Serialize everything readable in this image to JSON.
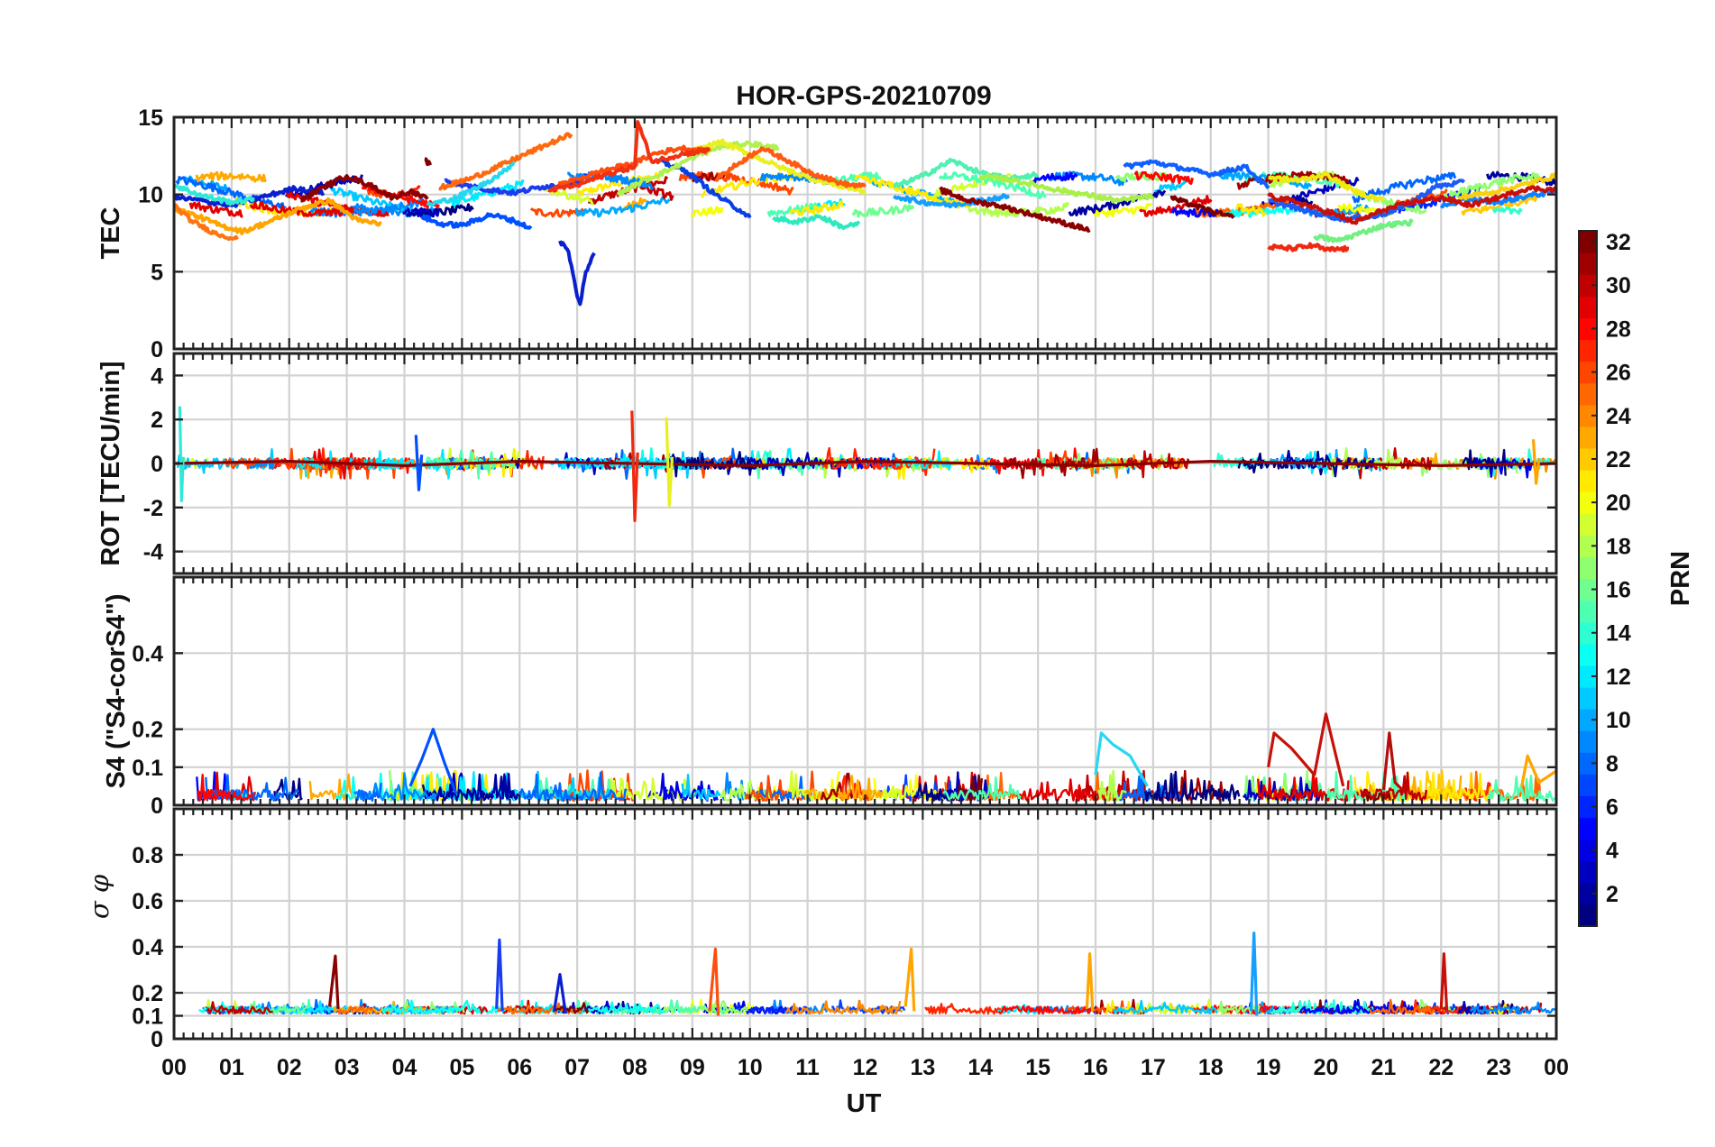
{
  "chart_data": [
    {
      "type": "line",
      "title": "HOR-GPS-20210709",
      "ylabel": "TEC",
      "ylim": [
        0,
        15
      ],
      "yticks": [
        "0",
        "5",
        "10",
        "15"
      ],
      "series": [
        {
          "prn": 2,
          "color": "#0a1fd0",
          "x": [
            0.0,
            0.5,
            1.0,
            1.6,
            2.1,
            2.6
          ],
          "y": [
            9.8,
            9.6,
            9.3,
            9.9,
            10.4,
            10.1
          ]
        },
        {
          "prn": 3,
          "color": "#0050ff",
          "x": [
            4.3,
            4.6,
            5.0,
            5.5,
            5.9,
            6.2
          ],
          "y": [
            8.6,
            8.1,
            8.0,
            8.7,
            8.3,
            7.8
          ]
        },
        {
          "prn": 1,
          "color": "#0a1fd0",
          "x": [
            6.7,
            6.85,
            7.0,
            7.05,
            7.15,
            7.3
          ],
          "y": [
            7.0,
            6.3,
            3.4,
            2.9,
            5.0,
            6.2
          ]
        },
        {
          "prn": 5,
          "color": "#1a3cf0",
          "x": [
            4.7,
            5.3,
            5.9,
            6.4,
            6.9,
            7.2
          ],
          "y": [
            10.9,
            10.4,
            10.1,
            10.5,
            10.7,
            11.2
          ]
        },
        {
          "prn": 6,
          "color": "#0a3fe6",
          "x": [
            8.4,
            8.9,
            9.4,
            9.9,
            10.0
          ],
          "y": [
            12.2,
            11.5,
            10.0,
            8.8,
            8.5
          ]
        },
        {
          "prn": 4,
          "color": "#1060ff",
          "x": [
            16.5,
            17.0,
            17.5,
            18.0,
            18.6,
            19.0
          ],
          "y": [
            11.8,
            12.1,
            11.7,
            11.3,
            11.8,
            10.4
          ]
        },
        {
          "prn": 8,
          "color": "#1c5cf5",
          "x": [
            19.0,
            19.6,
            20.3,
            20.9,
            21.4,
            21.9,
            22.4
          ],
          "y": [
            9.6,
            9.0,
            8.4,
            8.6,
            9.3,
            10.5,
            10.8
          ]
        },
        {
          "prn": 9,
          "color": "#1080ff",
          "x": [
            22.0,
            22.5,
            23.0,
            23.5,
            24.0
          ],
          "y": [
            9.3,
            9.7,
            9.5,
            9.9,
            10.2
          ]
        },
        {
          "prn": 10,
          "color": "#15a0ff",
          "x": [
            12.5,
            13.0,
            13.5,
            14.0,
            14.5
          ],
          "y": [
            9.9,
            9.5,
            9.3,
            9.6,
            9.9
          ]
        },
        {
          "prn": 12,
          "color": "#25d8f0",
          "x": [
            4.4,
            4.9,
            5.3,
            5.7,
            5.9
          ],
          "y": [
            9.3,
            9.8,
            10.5,
            11.4,
            12.1
          ]
        },
        {
          "prn": 13,
          "color": "#30e8d8",
          "x": [
            0.0,
            0.5,
            1.0,
            1.4
          ],
          "y": [
            10.6,
            9.9,
            9.5,
            9.7
          ]
        },
        {
          "prn": 14,
          "color": "#30e8c0",
          "x": [
            10.4,
            10.8,
            11.2,
            11.6,
            11.9
          ],
          "y": [
            8.5,
            8.2,
            8.6,
            7.9,
            8.1
          ]
        },
        {
          "prn": 15,
          "color": "#50f0b0",
          "x": [
            12.5,
            13.0,
            13.5,
            14.0,
            14.5,
            15.0
          ],
          "y": [
            10.5,
            11.2,
            12.2,
            11.4,
            11.0,
            11.3
          ]
        },
        {
          "prn": 16,
          "color": "#70f080",
          "x": [
            19.8,
            20.2,
            20.6,
            21.0,
            21.5
          ],
          "y": [
            7.3,
            7.0,
            7.5,
            8.0,
            8.2
          ]
        },
        {
          "prn": 18,
          "color": "#b0f050",
          "x": [
            7.7,
            8.1,
            8.6,
            9.0,
            9.5,
            10.0,
            10.5
          ],
          "y": [
            10.0,
            10.8,
            11.6,
            12.4,
            13.1,
            13.3,
            13.0
          ]
        },
        {
          "prn": 18,
          "color": "#a8ef48",
          "x": [
            14.0,
            14.6,
            15.2,
            15.8,
            16.4,
            17.0
          ],
          "y": [
            11.2,
            10.9,
            10.4,
            10.0,
            9.6,
            9.9
          ]
        },
        {
          "prn": 20,
          "color": "#e8f020",
          "x": [
            9.0,
            9.5,
            10.0,
            10.5,
            11.0,
            11.5,
            12.0
          ],
          "y": [
            12.8,
            13.4,
            12.6,
            11.8,
            11.1,
            10.6,
            10.2
          ]
        },
        {
          "prn": 20,
          "color": "#f0ea10",
          "x": [
            19.0,
            19.5,
            20.0,
            20.5,
            21.0
          ],
          "y": [
            11.1,
            10.9,
            11.3,
            10.2,
            9.6
          ]
        },
        {
          "prn": 21,
          "color": "#f8d010",
          "x": [
            22.3,
            22.8,
            23.3,
            23.8,
            24.0
          ],
          "y": [
            9.8,
            10.1,
            10.5,
            11.0,
            11.2
          ]
        },
        {
          "prn": 22,
          "color": "#ffa500",
          "x": [
            0.0,
            0.4,
            0.8,
            1.2,
            1.7,
            2.2,
            2.7,
            3.2,
            3.6
          ],
          "y": [
            9.1,
            8.6,
            8.0,
            7.6,
            8.3,
            9.1,
            9.6,
            8.3,
            8.1
          ]
        },
        {
          "prn": 24,
          "color": "#ff7410",
          "x": [
            0.0,
            0.3,
            0.7,
            1.1
          ],
          "y": [
            9.3,
            8.3,
            7.5,
            7.1
          ]
        },
        {
          "prn": 24,
          "color": "#ff6a10",
          "x": [
            4.6,
            5.2,
            5.8,
            6.4,
            6.9
          ],
          "y": [
            10.4,
            11.1,
            12.1,
            13.1,
            13.9
          ]
        },
        {
          "prn": 26,
          "color": "#ff4d0d",
          "x": [
            6.6,
            7.0,
            7.5,
            8.0,
            8.3,
            8.8,
            9.3
          ],
          "y": [
            10.5,
            11.0,
            11.6,
            12.0,
            12.6,
            13.0,
            12.8
          ]
        },
        {
          "prn": 26,
          "color": "#ff5a10",
          "x": [
            9.4,
            9.8,
            10.2,
            10.6,
            11.0,
            11.6,
            12.0
          ],
          "y": [
            11.0,
            12.0,
            13.0,
            12.3,
            11.5,
            10.7,
            10.5
          ]
        },
        {
          "prn": 27,
          "color": "#f03010",
          "x": [
            6.5,
            7.0,
            7.5,
            8.0,
            8.05,
            8.3,
            8.8,
            9.3
          ],
          "y": [
            10.3,
            10.6,
            11.3,
            11.8,
            14.7,
            12.1,
            12.6,
            12.9
          ]
        },
        {
          "prn": 27,
          "color": "#f02810",
          "x": [
            19.0,
            19.4,
            19.8,
            20.0,
            20.4
          ],
          "y": [
            6.6,
            6.5,
            6.7,
            6.4,
            6.5
          ]
        },
        {
          "prn": 30,
          "color": "#c8100a",
          "x": [
            19.0,
            19.5,
            20.0,
            20.5,
            21.0,
            21.5,
            22.0,
            22.5,
            23.0,
            23.5,
            24.0
          ],
          "y": [
            9.9,
            9.5,
            8.9,
            8.2,
            9.0,
            9.5,
            9.8,
            9.3,
            9.8,
            10.4,
            10.3
          ]
        },
        {
          "prn": 32,
          "color": "#8b0000",
          "x": [
            2.2,
            2.6,
            3.0,
            3.4,
            3.8,
            4.1,
            4.4
          ],
          "y": [
            9.6,
            10.5,
            11.2,
            10.6,
            9.8,
            10.2,
            9.7
          ]
        },
        {
          "prn": 32,
          "color": "#8b0000",
          "x": [
            13.3,
            13.8,
            14.3,
            14.8,
            15.3,
            15.9
          ],
          "y": [
            10.3,
            9.6,
            9.3,
            8.8,
            8.3,
            7.7
          ]
        },
        {
          "prn": 31,
          "color": "#7a0000",
          "x": [
            17.3,
            17.7,
            18.1,
            18.4
          ],
          "y": [
            9.8,
            9.3,
            8.8,
            8.5
          ]
        },
        {
          "prn": 31,
          "color": "#7a0000",
          "x": [
            4.35,
            4.45
          ],
          "y": [
            12.3,
            11.9
          ]
        }
      ]
    },
    {
      "type": "line",
      "ylabel": "ROT [TECU/min]",
      "ylim": [
        -5,
        5
      ],
      "yticks": [
        "-4",
        "-2",
        "0",
        "2",
        "4"
      ],
      "series": [
        {
          "prn": 32,
          "color": "#8b0000",
          "x": [
            0,
            2,
            4,
            6,
            8,
            10,
            12,
            14,
            16,
            18,
            20,
            22,
            24
          ],
          "y": [
            0,
            0.1,
            -0.1,
            0.1,
            0,
            -0.1,
            0.1,
            0,
            -0.1,
            0.1,
            0,
            -0.1,
            0
          ]
        },
        {
          "prn": 27,
          "color": "#f02810",
          "x": [
            7.95,
            8.0,
            8.05
          ],
          "y": [
            2.4,
            -2.6,
            0.5
          ]
        },
        {
          "prn": 20,
          "color": "#e8f020",
          "x": [
            8.55,
            8.6,
            8.65
          ],
          "y": [
            2.1,
            -1.9,
            0.3
          ]
        },
        {
          "prn": 3,
          "color": "#0050ff",
          "x": [
            4.2,
            4.25,
            4.3
          ],
          "y": [
            1.3,
            -1.2,
            0.4
          ]
        },
        {
          "prn": 13,
          "color": "#30e8d8",
          "x": [
            0.1,
            0.13,
            0.16
          ],
          "y": [
            2.6,
            -1.7,
            0.3
          ]
        },
        {
          "prn": 22,
          "color": "#ffa500",
          "x": [
            23.6,
            23.65,
            23.7
          ],
          "y": [
            1.1,
            -0.9,
            0.2
          ]
        }
      ]
    },
    {
      "type": "line",
      "ylabel": "S4 (\"S4-corS4\")",
      "ylim": [
        0,
        0.6
      ],
      "yticks": [
        "0",
        "0.1",
        "0.2",
        "0.4"
      ],
      "series": [
        {
          "prn": 3,
          "color": "#0050ff",
          "x": [
            4.1,
            4.3,
            4.5,
            4.7,
            4.9
          ],
          "y": [
            0.05,
            0.12,
            0.2,
            0.11,
            0.03
          ]
        },
        {
          "prn": 12,
          "color": "#25d8f0",
          "x": [
            16.0,
            16.1,
            16.3,
            16.6,
            16.9
          ],
          "y": [
            0.08,
            0.19,
            0.16,
            0.13,
            0.05
          ]
        },
        {
          "prn": 30,
          "color": "#c8100a",
          "x": [
            19.0,
            19.1,
            19.4,
            19.8,
            20.0,
            20.3
          ],
          "y": [
            0.1,
            0.19,
            0.15,
            0.08,
            0.24,
            0.05
          ]
        },
        {
          "prn": 30,
          "color": "#b50d0a",
          "x": [
            21.0,
            21.1,
            21.2,
            21.4
          ],
          "y": [
            0.04,
            0.19,
            0.06,
            0.03
          ]
        },
        {
          "prn": 22,
          "color": "#ffa500",
          "x": [
            23.4,
            23.5,
            23.7,
            24.0
          ],
          "y": [
            0.05,
            0.13,
            0.06,
            0.09
          ]
        }
      ]
    },
    {
      "type": "line",
      "ylabel": "σ φ",
      "ylim": [
        0,
        1
      ],
      "yticks": [
        "0",
        "0.1",
        "0.2",
        "0.4",
        "0.6",
        "0.8"
      ],
      "series": [
        {
          "prn": 32,
          "color": "#8b0000",
          "x": [
            2.7,
            2.8,
            2.85
          ],
          "y": [
            0.14,
            0.36,
            0.13
          ]
        },
        {
          "prn": 5,
          "color": "#1a3cf0",
          "x": [
            5.6,
            5.65,
            5.7
          ],
          "y": [
            0.13,
            0.43,
            0.12
          ]
        },
        {
          "prn": 2,
          "color": "#0a1fd0",
          "x": [
            6.6,
            6.7,
            6.8
          ],
          "y": [
            0.12,
            0.28,
            0.11
          ]
        },
        {
          "prn": 26,
          "color": "#ff4d0d",
          "x": [
            9.3,
            9.4,
            9.45
          ],
          "y": [
            0.12,
            0.39,
            0.1
          ]
        },
        {
          "prn": 22,
          "color": "#ffa500",
          "x": [
            12.7,
            12.8,
            12.85
          ],
          "y": [
            0.14,
            0.39,
            0.12
          ]
        },
        {
          "prn": 22,
          "color": "#ffa500",
          "x": [
            15.85,
            15.9,
            15.95
          ],
          "y": [
            0.13,
            0.37,
            0.12
          ]
        },
        {
          "prn": 10,
          "color": "#15a0ff",
          "x": [
            18.7,
            18.75,
            18.8
          ],
          "y": [
            0.12,
            0.46,
            0.1
          ]
        },
        {
          "prn": 30,
          "color": "#c8100a",
          "x": [
            22.0,
            22.05,
            22.1
          ],
          "y": [
            0.13,
            0.37,
            0.12
          ]
        }
      ]
    }
  ],
  "x_axis": {
    "xlabel": "UT",
    "ticks": [
      "00",
      "01",
      "02",
      "03",
      "04",
      "05",
      "06",
      "07",
      "08",
      "09",
      "10",
      "11",
      "12",
      "13",
      "14",
      "15",
      "16",
      "17",
      "18",
      "19",
      "20",
      "21",
      "22",
      "23",
      "00"
    ],
    "range_hours": [
      0,
      24
    ]
  },
  "colorbar": {
    "label": "PRN",
    "range": [
      1,
      32
    ],
    "ticks": [
      "2",
      "4",
      "6",
      "8",
      "10",
      "12",
      "14",
      "16",
      "18",
      "20",
      "22",
      "24",
      "26",
      "28",
      "30",
      "32"
    ],
    "colormap": "jet"
  }
}
